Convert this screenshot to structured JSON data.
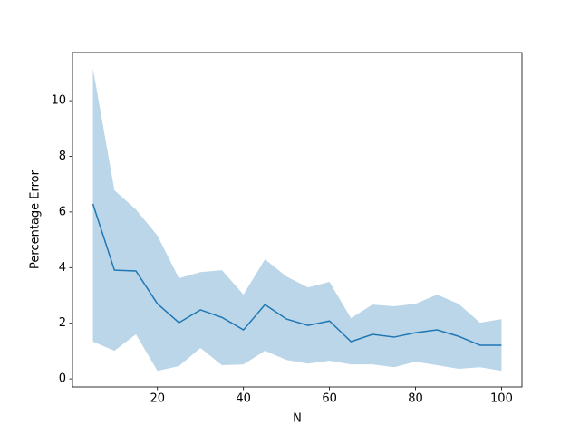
{
  "chart_data": {
    "type": "line_band",
    "xlabel": "N",
    "ylabel": "Percentage Error",
    "x": [
      5,
      10,
      15,
      20,
      25,
      30,
      35,
      40,
      45,
      50,
      55,
      60,
      65,
      70,
      75,
      80,
      85,
      90,
      95,
      100
    ],
    "series": [
      {
        "color": "#1f77b4",
        "values": [
          6.29,
          3.91,
          3.88,
          2.7,
          2.02,
          2.48,
          2.21,
          1.76,
          2.67,
          2.15,
          1.92,
          2.08,
          1.34,
          1.6,
          1.5,
          1.66,
          1.76,
          1.53,
          1.21,
          1.21
        ]
      }
    ],
    "band": {
      "color": "#1f77b4",
      "opacity": 0.3,
      "upper": [
        11.17,
        6.78,
        6.09,
        5.15,
        3.62,
        3.84,
        3.91,
        3.03,
        4.3,
        3.68,
        3.29,
        3.49,
        2.18,
        2.67,
        2.61,
        2.7,
        3.03,
        2.7,
        2.02,
        2.15
      ],
      "lower": [
        1.34,
        1.01,
        1.6,
        0.29,
        0.46,
        1.11,
        0.49,
        0.52,
        1.01,
        0.68,
        0.55,
        0.65,
        0.52,
        0.52,
        0.42,
        0.62,
        0.49,
        0.36,
        0.42,
        0.29
      ]
    },
    "xlim": [
      0.25,
      104.75
    ],
    "xticks": [
      20,
      40,
      60,
      80,
      100
    ],
    "ylim": [
      -0.29,
      11.73
    ],
    "yticks": [
      0,
      2,
      4,
      6,
      8,
      10
    ]
  }
}
